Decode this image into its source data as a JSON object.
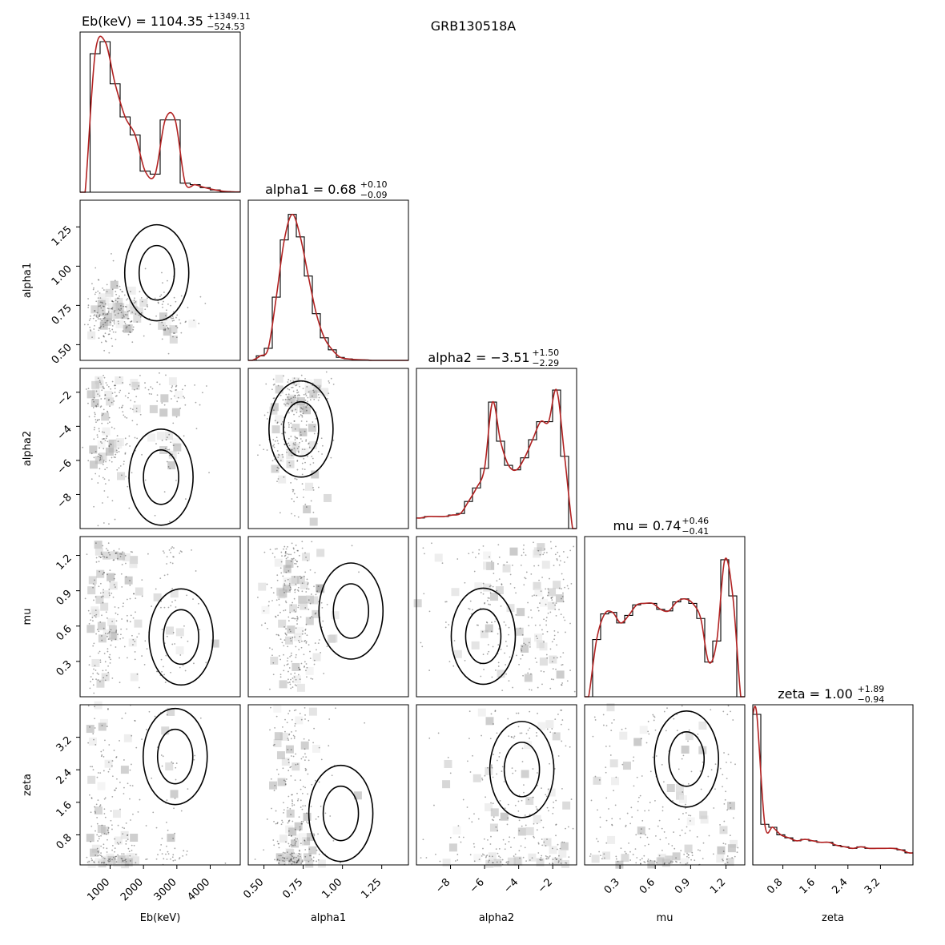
{
  "figure": {
    "title": "GRB130518A"
  },
  "chart_data": {
    "type": "corner",
    "params": [
      {
        "name": "Eb(keV)",
        "range": [
          100,
          4900
        ],
        "ticks": [
          1000,
          2000,
          3000,
          4000
        ],
        "tick_labels": [
          "1000",
          "2000",
          "3000",
          "4000"
        ],
        "title_main": "Eb(keV) = 1104.35",
        "title_sup": "+1349.11",
        "title_sub": "−524.53"
      },
      {
        "name": "alpha1",
        "range": [
          0.4,
          1.42
        ],
        "ticks": [
          0.5,
          0.75,
          1.0,
          1.25
        ],
        "tick_labels": [
          "0.50",
          "0.75",
          "1.00",
          "1.25"
        ],
        "title_main": "alpha1 = 0.68",
        "title_sup": "+0.10",
        "title_sub": "−0.09"
      },
      {
        "name": "alpha2",
        "range": [
          -10.0,
          -0.6
        ],
        "ticks": [
          -8,
          -6,
          -4,
          -2
        ],
        "tick_labels": [
          "−8",
          "−6",
          "−4",
          "−2"
        ],
        "title_main": "alpha2 = −3.51",
        "title_sup": "+1.50",
        "title_sub": "−2.29"
      },
      {
        "name": "mu",
        "range": [
          0.0,
          1.36
        ],
        "ticks": [
          0.3,
          0.6,
          0.9,
          1.2
        ],
        "tick_labels": [
          "0.3",
          "0.6",
          "0.9",
          "1.2"
        ],
        "title_main": "mu = 0.74",
        "title_sup": "+0.46",
        "title_sub": "−0.41"
      },
      {
        "name": "zeta",
        "range": [
          0.06,
          4.0
        ],
        "ticks": [
          0.8,
          1.6,
          2.4,
          3.2
        ],
        "tick_labels": [
          "0.8",
          "1.6",
          "2.4",
          "3.2"
        ],
        "title_main": "zeta = 1.00",
        "title_sup": "+1.89",
        "title_sub": "−0.94"
      }
    ],
    "histograms": [
      [
        0.0,
        0.92,
        1.0,
        0.72,
        0.5,
        0.38,
        0.14,
        0.12,
        0.48,
        0.48,
        0.06,
        0.05,
        0.03,
        0.015,
        0.005,
        0.002
      ],
      [
        0.0,
        0.03,
        0.08,
        0.42,
        0.8,
        0.97,
        0.82,
        0.56,
        0.31,
        0.15,
        0.07,
        0.02,
        0.01,
        0.005,
        0.003,
        0.0,
        0.0,
        0.0,
        0.0,
        0.0
      ],
      [
        0.07,
        0.08,
        0.08,
        0.08,
        0.09,
        0.1,
        0.18,
        0.27,
        0.4,
        0.84,
        0.58,
        0.42,
        0.39,
        0.47,
        0.59,
        0.71,
        0.71,
        0.92,
        0.48,
        0.0
      ],
      [
        0.0,
        0.38,
        0.55,
        0.56,
        0.49,
        0.54,
        0.61,
        0.62,
        0.62,
        0.58,
        0.57,
        0.63,
        0.65,
        0.62,
        0.52,
        0.23,
        0.37,
        0.91,
        0.67,
        0.0
      ],
      [
        1.0,
        0.27,
        0.25,
        0.2,
        0.18,
        0.16,
        0.17,
        0.16,
        0.15,
        0.15,
        0.13,
        0.12,
        0.11,
        0.12,
        0.11,
        0.11,
        0.11,
        0.11,
        0.1,
        0.08
      ]
    ],
    "line_color": "#b22222"
  }
}
